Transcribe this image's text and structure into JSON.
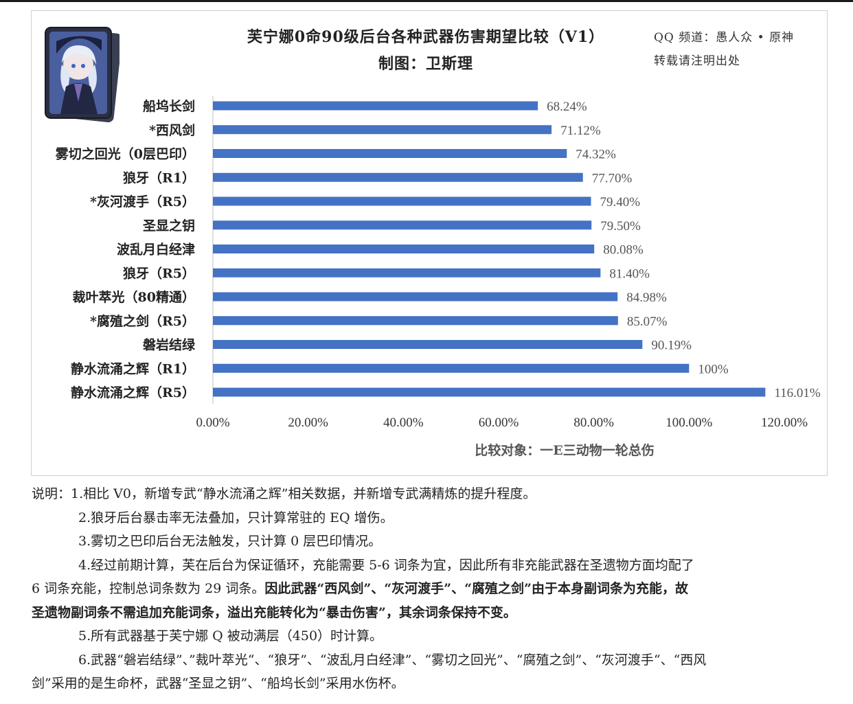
{
  "header": {
    "title": "芙宁娜0命90级后台各种武器伤害期望比较（V1）",
    "subtitle": "制图：卫斯理",
    "credit_line1": "QQ 频道：愚人众 • 原神",
    "credit_line2": "转载请注明出处"
  },
  "avatar": {
    "icon": "character-portrait-card"
  },
  "chart_data": {
    "type": "bar",
    "orientation": "horizontal",
    "categories": [
      "船坞长剑",
      "*西风剑",
      "雾切之回光（0层巴印）",
      "狼牙（R1）",
      "*灰河渡手（R5）",
      "圣显之钥",
      "波乱月白经津",
      "狼牙（R5）",
      "裁叶萃光（80精通）",
      "*腐殖之剑（R5）",
      "磐岩结绿",
      "静水流涌之辉（R1）",
      "静水流涌之辉（R5）"
    ],
    "values": [
      68.24,
      71.12,
      74.32,
      77.7,
      79.4,
      79.5,
      80.08,
      81.4,
      84.98,
      85.07,
      90.19,
      100,
      116.01
    ],
    "value_labels": [
      "68.24%",
      "71.12%",
      "74.32%",
      "77.70%",
      "79.40%",
      "79.50%",
      "80.08%",
      "81.40%",
      "84.98%",
      "85.07%",
      "90.19%",
      "100%",
      "116.01%"
    ],
    "x_ticks": [
      "0.00%",
      "20.00%",
      "40.00%",
      "60.00%",
      "80.00%",
      "100.00%",
      "120.00%"
    ],
    "xlim": [
      0,
      120
    ],
    "xlabel": "比较对象：一E三动物一轮总伤",
    "grid": false,
    "color": "#4472c4"
  },
  "notes": {
    "line1": "说明：1.相比 V0，新增专武“静水流涌之辉”相关数据，并新增专武满精炼的提升程度。",
    "line2": "2.狼牙后台暴击率无法叠加，只计算常驻的 EQ 增伤。",
    "line3": "3.雾切之巴印后台无法触发，只计算 0 层巴印情况。",
    "line4": "4.经过前期计算，芙在后台为保证循环，充能需要 5-6 词条为宜，因此所有非充能武器在圣遗物方面均配了",
    "line5a": "6 词条充能，控制总词条数为 29 词条。",
    "line5b": "因此武器“西风剑”、“灰河渡手”、“腐殖之剑”由于本身副词条为充能，故",
    "line6": "圣遗物副词条不需追加充能词条，溢出充能转化为“暴击伤害”，其余词条保持不变。",
    "line7": "5.所有武器基于芙宁娜 Q 被动满层（450）时计算。",
    "line8": "6.武器“磐岩结绿”、”裁叶萃光“、“狼牙”、“波乱月白经津”、“雾切之回光”、“腐殖之剑”、“灰河渡手“、“西风",
    "line9": "剑”采用的是生命杯，武器“圣显之钥”、“船坞长剑”采用水伤杯。"
  }
}
